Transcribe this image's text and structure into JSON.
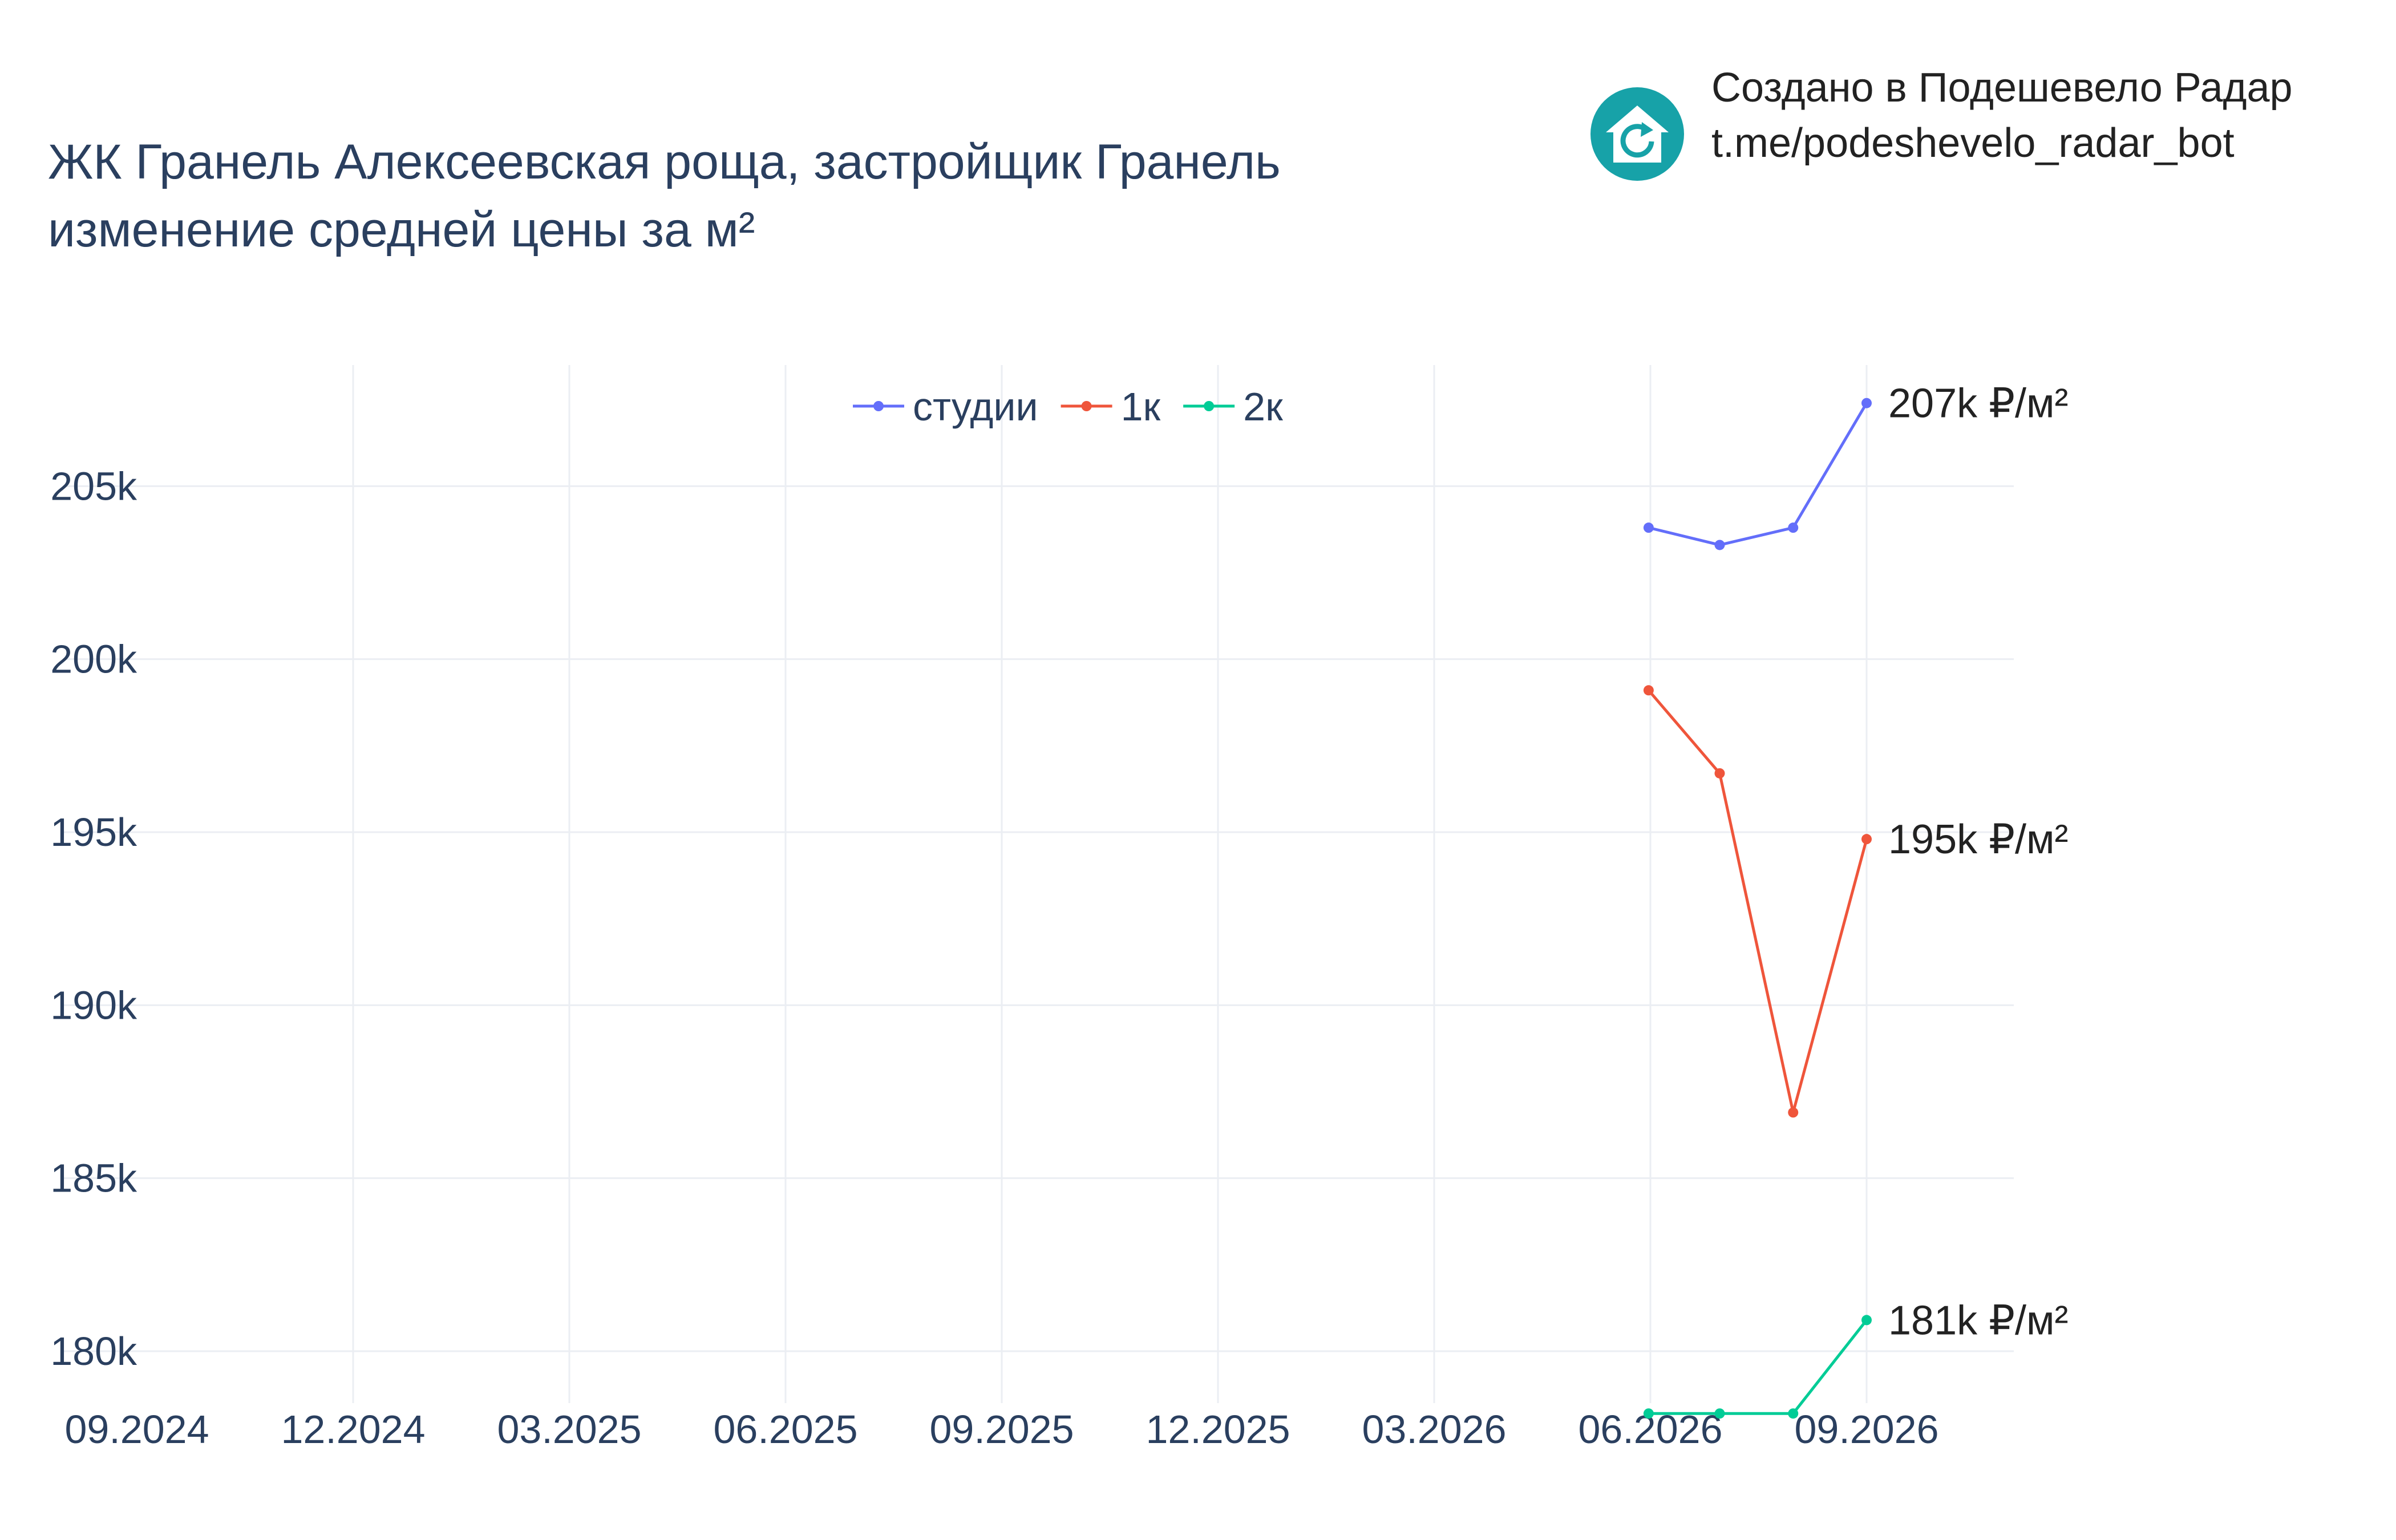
{
  "title": {
    "line1": "ЖК Гранель Алексеевская роща, застройщик Гранель",
    "line2": "изменение средней цены за м²"
  },
  "credit": {
    "line1": "Создано в Подешевело Радар",
    "line2": "t.me/podeshevelo_radar_bot",
    "logo_icon": "house-refresh-icon",
    "logo_color": "#17a2a8"
  },
  "chart_data": {
    "type": "line",
    "x_ticks": [
      "09.2024",
      "12.2024",
      "03.2025",
      "06.2025",
      "09.2025",
      "12.2025",
      "03.2026",
      "06.2026",
      "09.2026"
    ],
    "y_ticks": [
      "180k",
      "185k",
      "190k",
      "195k",
      "200k",
      "205k"
    ],
    "ylim": [
      178500,
      208500
    ],
    "grid": true,
    "legend_position": "top-center",
    "series": [
      {
        "name": "студии",
        "color": "#636efa",
        "points": [
          {
            "x": "2026-06-01",
            "y": 203800
          },
          {
            "x": "2026-07-01",
            "y": 203300
          },
          {
            "x": "2026-08-01",
            "y": 203800
          },
          {
            "x": "2026-09-01",
            "y": 207400
          }
        ],
        "end_label": "207k ₽/м²"
      },
      {
        "name": "1к",
        "color": "#ef553b",
        "points": [
          {
            "x": "2026-06-01",
            "y": 199100
          },
          {
            "x": "2026-07-01",
            "y": 196700
          },
          {
            "x": "2026-08-01",
            "y": 186900
          },
          {
            "x": "2026-09-01",
            "y": 194800
          }
        ],
        "end_label": "195k ₽/м²"
      },
      {
        "name": "2к",
        "color": "#00cc96",
        "points": [
          {
            "x": "2026-06-01",
            "y": 178200
          },
          {
            "x": "2026-07-01",
            "y": 178200
          },
          {
            "x": "2026-08-01",
            "y": 178200
          },
          {
            "x": "2026-09-01",
            "y": 180900
          }
        ],
        "end_label": "181k ₽/м²"
      }
    ]
  }
}
